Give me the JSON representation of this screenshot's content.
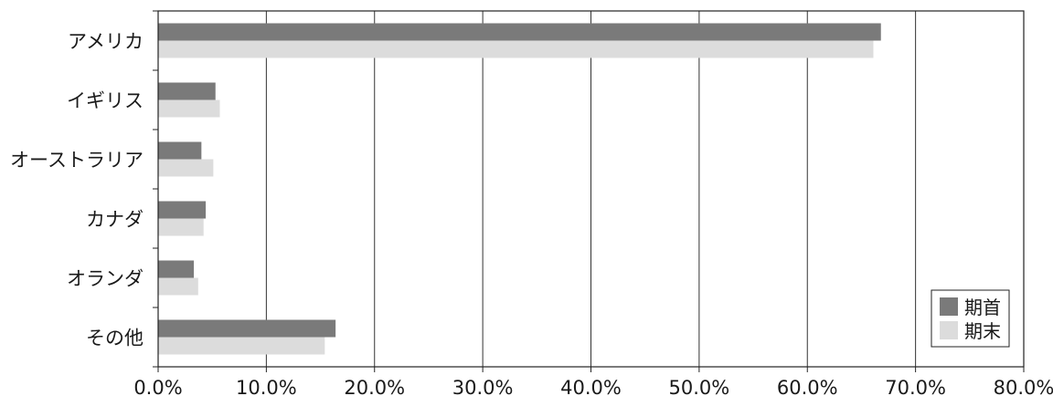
{
  "chart_data": {
    "type": "bar",
    "orientation": "horizontal",
    "categories": [
      "アメリカ",
      "イギリス",
      "オーストラリア",
      "カナダ",
      "オランダ",
      "その他"
    ],
    "series": [
      {
        "name": "期首",
        "values": [
          66.8,
          5.3,
          4.0,
          4.4,
          3.3,
          16.4
        ],
        "color": "#7a7a7a"
      },
      {
        "name": "期末",
        "values": [
          66.1,
          5.7,
          5.1,
          4.2,
          3.7,
          15.4
        ],
        "color": "#dcdcdc"
      }
    ],
    "xlim": [
      0,
      80
    ],
    "x_ticks": [
      0,
      10,
      20,
      30,
      40,
      50,
      60,
      70,
      80
    ],
    "x_tick_labels": [
      "0.0%",
      "10.0%",
      "20.0%",
      "30.0%",
      "40.0%",
      "50.0%",
      "60.0%",
      "70.0%",
      "80.0%"
    ],
    "grid": "vertical",
    "legend_position": "bottom-right",
    "title": "",
    "xlabel": "",
    "ylabel": ""
  }
}
